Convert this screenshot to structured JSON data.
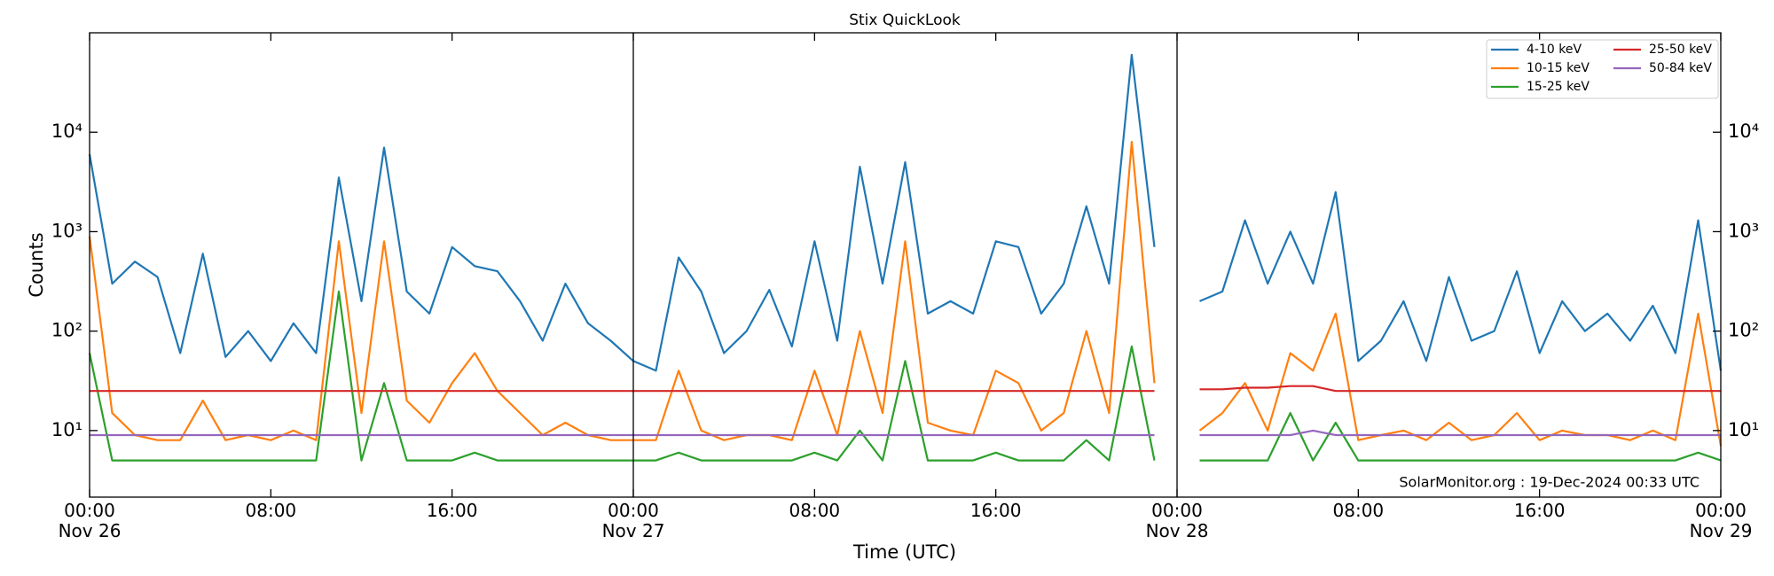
{
  "chart_data": {
    "type": "line",
    "title": "Stix QuickLook",
    "xlabel": "Time (UTC)",
    "ylabel": "Counts",
    "annotation": "SolarMonitor.org : 19-Dec-2024 00:33 UTC",
    "log_scale": true,
    "legend": "upper right",
    "xlim": [
      "Nov 26 00:00",
      "Nov 29 00:00"
    ],
    "xticks": [
      {
        "value": "Nov 26 00:00",
        "label": "00:00\nNov 26"
      },
      {
        "value": "Nov 26 08:00",
        "label": "08:00"
      },
      {
        "value": "Nov 26 16:00",
        "label": "16:00"
      },
      {
        "value": "Nov 27 00:00",
        "label": "00:00\nNov 27"
      },
      {
        "value": "Nov 27 08:00",
        "label": "08:00"
      },
      {
        "value": "Nov 27 16:00",
        "label": "16:00"
      },
      {
        "value": "Nov 28 00:00",
        "label": "00:00\nNov 28"
      },
      {
        "value": "Nov 28 08:00",
        "label": "08:00"
      },
      {
        "value": "Nov 28 16:00",
        "label": "16:00"
      },
      {
        "value": "Nov 29 00:00",
        "label": "00:00\nNov 29"
      }
    ],
    "ylim": [
      2.14,
      100000
    ],
    "yticks": [
      {
        "value": 10,
        "label": "10¹"
      },
      {
        "value": 100,
        "label": "10²"
      },
      {
        "value": 1000,
        "label": "10³"
      },
      {
        "value": 10000,
        "label": "10⁴"
      }
    ],
    "x": [
      "Nov 26 00:00",
      "Nov 26 01:00",
      "Nov 26 02:00",
      "Nov 26 03:00",
      "Nov 26 04:00",
      "Nov 26 05:00",
      "Nov 26 06:00",
      "Nov 26 07:00",
      "Nov 26 08:00",
      "Nov 26 09:00",
      "Nov 26 10:00",
      "Nov 26 11:00",
      "Nov 26 12:00",
      "Nov 26 13:00",
      "Nov 26 14:00",
      "Nov 26 15:00",
      "Nov 26 16:00",
      "Nov 26 17:00",
      "Nov 26 18:00",
      "Nov 26 19:00",
      "Nov 26 20:00",
      "Nov 26 21:00",
      "Nov 26 22:00",
      "Nov 26 23:00",
      "Nov 27 00:00",
      "Nov 27 01:00",
      "Nov 27 02:00",
      "Nov 27 03:00",
      "Nov 27 04:00",
      "Nov 27 05:00",
      "Nov 27 06:00",
      "Nov 27 07:00",
      "Nov 27 08:00",
      "Nov 27 09:00",
      "Nov 27 10:00",
      "Nov 27 11:00",
      "Nov 27 12:00",
      "Nov 27 13:00",
      "Nov 27 14:00",
      "Nov 27 15:00",
      "Nov 27 16:00",
      "Nov 27 17:00",
      "Nov 27 18:00",
      "Nov 27 19:00",
      "Nov 27 20:00",
      "Nov 27 21:00",
      "Nov 27 22:00",
      "Nov 27 23:00",
      "Nov 28 00:00",
      "Nov 28 01:00",
      "Nov 28 02:00",
      "Nov 28 03:00",
      "Nov 28 04:00",
      "Nov 28 05:00",
      "Nov 28 06:00",
      "Nov 28 07:00",
      "Nov 28 08:00",
      "Nov 28 09:00",
      "Nov 28 10:00",
      "Nov 28 11:00",
      "Nov 28 12:00",
      "Nov 28 13:00",
      "Nov 28 14:00",
      "Nov 28 15:00",
      "Nov 28 16:00",
      "Nov 28 17:00",
      "Nov 28 18:00",
      "Nov 28 19:00",
      "Nov 28 20:00",
      "Nov 28 21:00",
      "Nov 28 22:00",
      "Nov 28 23:00",
      "Nov 29 00:00"
    ],
    "series": [
      {
        "name": "4-10 keV",
        "color": "#1f77b4",
        "values": [
          6000,
          300,
          500,
          350,
          60,
          600,
          55,
          100,
          50,
          120,
          60,
          3500,
          200,
          7000,
          250,
          150,
          700,
          450,
          400,
          200,
          80,
          300,
          120,
          80,
          50,
          40,
          550,
          250,
          60,
          100,
          260,
          70,
          800,
          80,
          4500,
          300,
          5000,
          150,
          200,
          150,
          800,
          700,
          150,
          300,
          1800,
          300,
          60000,
          700,
          null,
          200,
          250,
          1300,
          300,
          1000,
          300,
          2500,
          50,
          80,
          200,
          50,
          350,
          80,
          100,
          400,
          60,
          200,
          100,
          150,
          80,
          180,
          60,
          1300,
          40
        ]
      },
      {
        "name": "10-15 keV",
        "color": "#ff7f0e",
        "values": [
          900,
          15,
          9,
          8,
          8,
          20,
          8,
          9,
          8,
          10,
          8,
          800,
          15,
          800,
          20,
          12,
          30,
          60,
          25,
          15,
          9,
          12,
          9,
          8,
          8,
          8,
          40,
          10,
          8,
          9,
          9,
          8,
          40,
          9,
          100,
          15,
          800,
          12,
          10,
          9,
          40,
          30,
          10,
          15,
          100,
          15,
          8000,
          30,
          null,
          10,
          15,
          30,
          10,
          60,
          40,
          150,
          8,
          9,
          10,
          8,
          12,
          8,
          9,
          15,
          8,
          10,
          9,
          9,
          8,
          10,
          8,
          150,
          7
        ]
      },
      {
        "name": "15-25 keV",
        "color": "#2ca02c",
        "values": [
          60,
          5,
          5,
          5,
          5,
          5,
          5,
          5,
          5,
          5,
          5,
          250,
          5,
          30,
          5,
          5,
          5,
          6,
          5,
          5,
          5,
          5,
          5,
          5,
          5,
          5,
          6,
          5,
          5,
          5,
          5,
          5,
          6,
          5,
          10,
          5,
          50,
          5,
          5,
          5,
          6,
          5,
          5,
          5,
          8,
          5,
          70,
          5,
          null,
          5,
          5,
          5,
          5,
          15,
          5,
          12,
          5,
          5,
          5,
          5,
          5,
          5,
          5,
          5,
          5,
          5,
          5,
          5,
          5,
          5,
          5,
          6,
          5
        ]
      },
      {
        "name": "25-50 keV",
        "color": "#d62728",
        "values": [
          25,
          25,
          25,
          25,
          25,
          25,
          25,
          25,
          25,
          25,
          25,
          25,
          25,
          25,
          25,
          25,
          25,
          25,
          25,
          25,
          25,
          25,
          25,
          25,
          25,
          25,
          25,
          25,
          25,
          25,
          25,
          25,
          25,
          25,
          25,
          25,
          25,
          25,
          25,
          25,
          25,
          25,
          25,
          25,
          25,
          25,
          25,
          25,
          null,
          26,
          26,
          27,
          27,
          28,
          28,
          25,
          25,
          25,
          25,
          25,
          25,
          25,
          25,
          25,
          25,
          25,
          25,
          25,
          25,
          25,
          25,
          25,
          25
        ]
      },
      {
        "name": "50-84 keV",
        "color": "#9467bd",
        "values": [
          9,
          9,
          9,
          9,
          9,
          9,
          9,
          9,
          9,
          9,
          9,
          9,
          9,
          9,
          9,
          9,
          9,
          9,
          9,
          9,
          9,
          9,
          9,
          9,
          9,
          9,
          9,
          9,
          9,
          9,
          9,
          9,
          9,
          9,
          9,
          9,
          9,
          9,
          9,
          9,
          9,
          9,
          9,
          9,
          9,
          9,
          9,
          9,
          null,
          9,
          9,
          9,
          9,
          9,
          10,
          9,
          9,
          9,
          9,
          9,
          9,
          9,
          9,
          9,
          9,
          9,
          9,
          9,
          9,
          9,
          9,
          9,
          9
        ]
      }
    ]
  }
}
